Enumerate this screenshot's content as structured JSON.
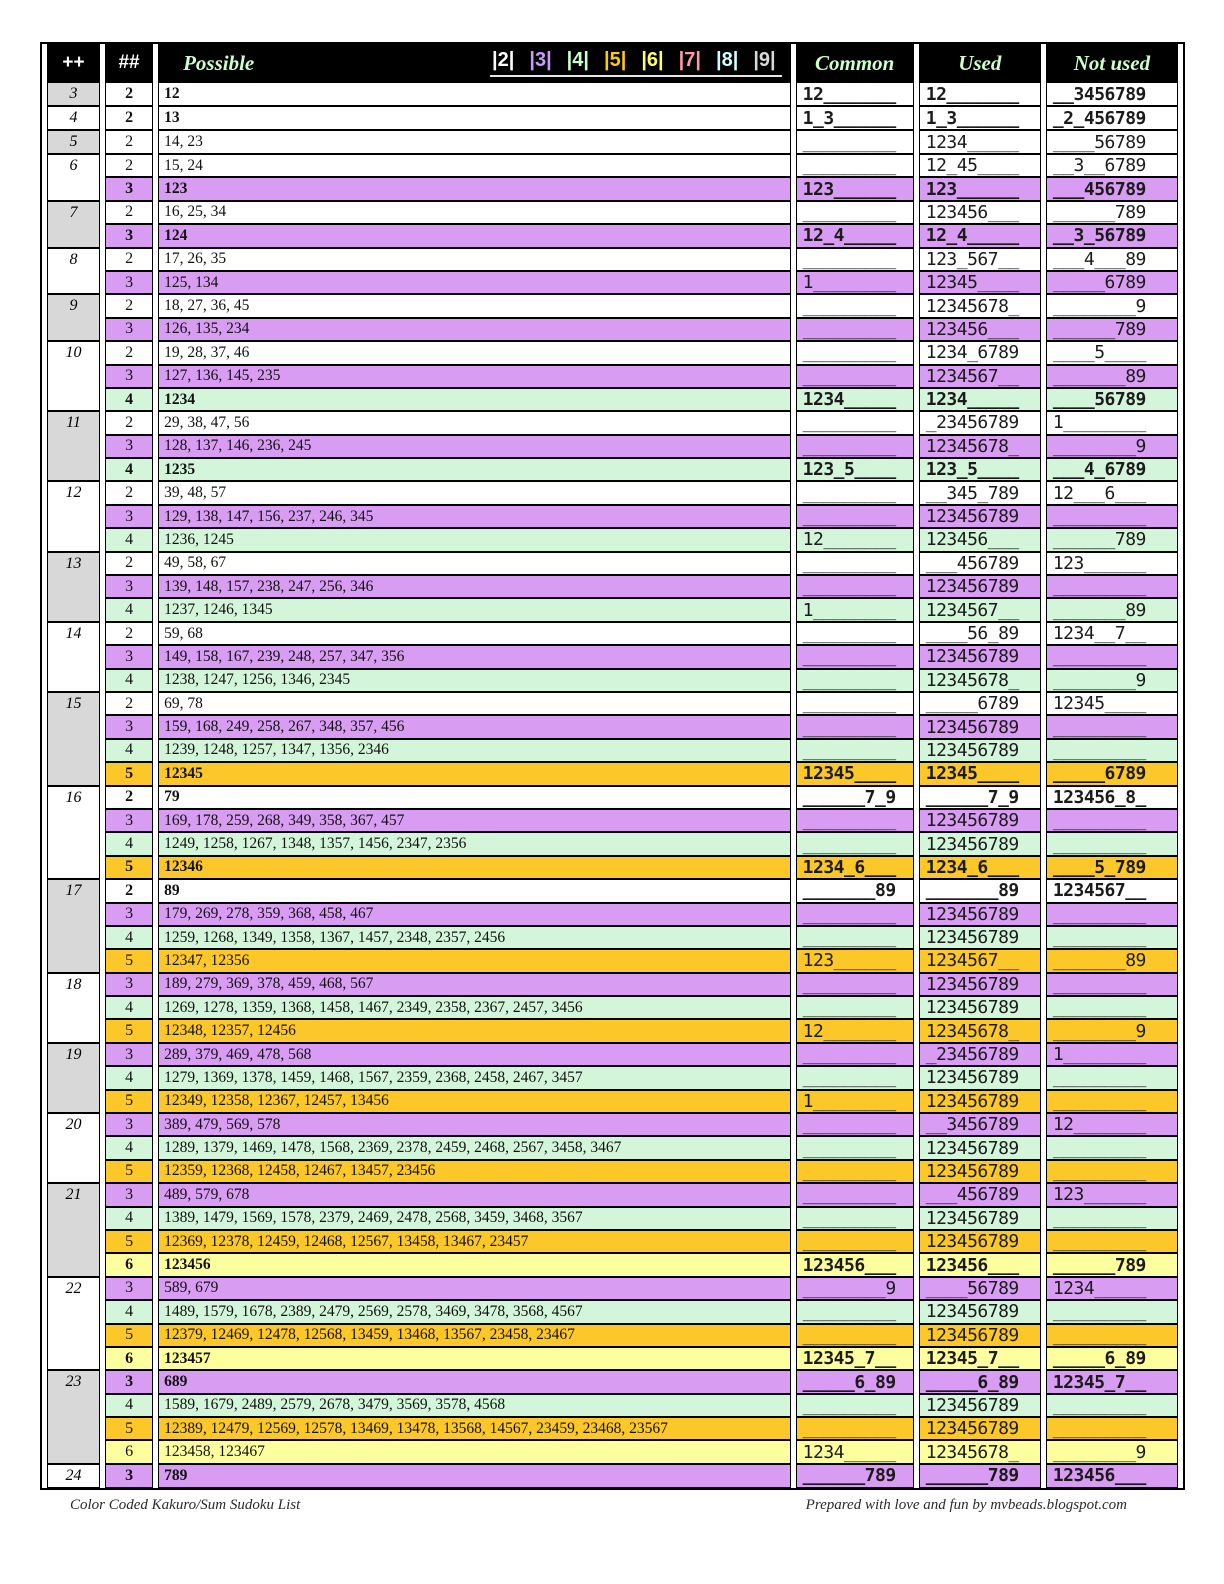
{
  "header": {
    "col_sum": "++",
    "col_count": "##",
    "col_possible": "Possible",
    "col_common": "Common",
    "col_used": "Used",
    "col_not_used": "Not used",
    "legend": [
      {
        "label": "|2|",
        "color": "#ffffff"
      },
      {
        "label": "|3|",
        "color": "#cc99ff"
      },
      {
        "label": "|4|",
        "color": "#ccffcc"
      },
      {
        "label": "|5|",
        "color": "#ffcc00"
      },
      {
        "label": "|6|",
        "color": "#ffff66"
      },
      {
        "label": "|7|",
        "color": "#ff99aa"
      },
      {
        "label": "|8|",
        "color": "#ccffff"
      },
      {
        "label": "|9|",
        "color": "#d9d9d9"
      }
    ]
  },
  "colors": {
    "rows": {
      "2": "#ffffff",
      "3": "#d89cf2",
      "4": "#d3f6da",
      "5": "#fcc729",
      "6": "#fdff9e"
    },
    "sum_shade": "#d8d8d8",
    "header_text": "#ccffcc"
  },
  "groups": [
    {
      "sum": "3",
      "rows": [
        {
          "n": "2",
          "b": 1,
          "p": "12",
          "c": "12_______",
          "u": "12_______",
          "x": "__3456789"
        }
      ]
    },
    {
      "sum": "4",
      "rows": [
        {
          "n": "2",
          "b": 1,
          "p": "13",
          "c": "1_3______",
          "u": "1_3______",
          "x": "_2_456789"
        }
      ]
    },
    {
      "sum": "5",
      "rows": [
        {
          "n": "2",
          "b": 0,
          "p": "14, 23",
          "c": "_________",
          "u": "1234_____",
          "x": "____56789"
        }
      ]
    },
    {
      "sum": "6",
      "rows": [
        {
          "n": "2",
          "b": 0,
          "p": "15, 24",
          "c": "_________",
          "u": "12_45____",
          "x": "__3__6789"
        },
        {
          "n": "3",
          "b": 1,
          "p": "123",
          "c": "123______",
          "u": "123______",
          "x": "___456789"
        }
      ]
    },
    {
      "sum": "7",
      "rows": [
        {
          "n": "2",
          "b": 0,
          "p": "16, 25, 34",
          "c": "_________",
          "u": "123456___",
          "x": "______789"
        },
        {
          "n": "3",
          "b": 1,
          "p": "124",
          "c": "12_4_____",
          "u": "12_4_____",
          "x": "__3_56789"
        }
      ]
    },
    {
      "sum": "8",
      "rows": [
        {
          "n": "2",
          "b": 0,
          "p": "17, 26, 35",
          "c": "_________",
          "u": "123_567__",
          "x": "___4___89"
        },
        {
          "n": "3",
          "b": 0,
          "p": "125, 134",
          "c": "1________",
          "u": "12345____",
          "x": "_____6789"
        }
      ]
    },
    {
      "sum": "9",
      "rows": [
        {
          "n": "2",
          "b": 0,
          "p": "18, 27, 36, 45",
          "c": "_________",
          "u": "12345678_",
          "x": "________9"
        },
        {
          "n": "3",
          "b": 0,
          "p": "126, 135, 234",
          "c": "_________",
          "u": "123456___",
          "x": "______789"
        }
      ]
    },
    {
      "sum": "10",
      "rows": [
        {
          "n": "2",
          "b": 0,
          "p": "19, 28, 37, 46",
          "c": "_________",
          "u": "1234_6789",
          "x": "____5____"
        },
        {
          "n": "3",
          "b": 0,
          "p": "127, 136, 145, 235",
          "c": "_________",
          "u": "1234567__",
          "x": "_______89"
        },
        {
          "n": "4",
          "b": 1,
          "p": "1234",
          "c": "1234_____",
          "u": "1234_____",
          "x": "____56789"
        }
      ]
    },
    {
      "sum": "11",
      "rows": [
        {
          "n": "2",
          "b": 0,
          "p": "29, 38, 47, 56",
          "c": "_________",
          "u": "_23456789",
          "x": "1________"
        },
        {
          "n": "3",
          "b": 0,
          "p": "128, 137, 146, 236, 245",
          "c": "_________",
          "u": "12345678_",
          "x": "________9"
        },
        {
          "n": "4",
          "b": 1,
          "p": "1235",
          "c": "123_5____",
          "u": "123_5____",
          "x": "___4_6789"
        }
      ]
    },
    {
      "sum": "12",
      "rows": [
        {
          "n": "2",
          "b": 0,
          "p": "39, 48, 57",
          "c": "_________",
          "u": "__345_789",
          "x": "12___6___"
        },
        {
          "n": "3",
          "b": 0,
          "p": "129, 138, 147, 156, 237, 246, 345",
          "c": "_________",
          "u": "123456789",
          "x": "_________"
        },
        {
          "n": "4",
          "b": 0,
          "p": "1236, 1245",
          "c": "12_______",
          "u": "123456___",
          "x": "______789"
        }
      ]
    },
    {
      "sum": "13",
      "rows": [
        {
          "n": "2",
          "b": 0,
          "p": "49, 58, 67",
          "c": "_________",
          "u": "___456789",
          "x": "123______"
        },
        {
          "n": "3",
          "b": 0,
          "p": "139, 148, 157, 238, 247, 256, 346",
          "c": "_________",
          "u": "123456789",
          "x": "_________"
        },
        {
          "n": "4",
          "b": 0,
          "p": "1237, 1246, 1345",
          "c": "1________",
          "u": "1234567__",
          "x": "_______89"
        }
      ]
    },
    {
      "sum": "14",
      "rows": [
        {
          "n": "2",
          "b": 0,
          "p": "59, 68",
          "c": "_________",
          "u": "____56_89",
          "x": "1234__7__"
        },
        {
          "n": "3",
          "b": 0,
          "p": "149, 158, 167, 239, 248, 257, 347, 356",
          "c": "_________",
          "u": "123456789",
          "x": "_________"
        },
        {
          "n": "4",
          "b": 0,
          "p": "1238, 1247, 1256, 1346, 2345",
          "c": "_________",
          "u": "12345678_",
          "x": "________9"
        }
      ]
    },
    {
      "sum": "15",
      "rows": [
        {
          "n": "2",
          "b": 0,
          "p": "69, 78",
          "c": "_________",
          "u": "_____6789",
          "x": "12345____"
        },
        {
          "n": "3",
          "b": 0,
          "p": "159, 168, 249, 258, 267, 348, 357, 456",
          "c": "_________",
          "u": "123456789",
          "x": "_________"
        },
        {
          "n": "4",
          "b": 0,
          "p": "1239, 1248, 1257, 1347, 1356, 2346",
          "c": "_________",
          "u": "123456789",
          "x": "_________"
        },
        {
          "n": "5",
          "b": 1,
          "p": "12345",
          "c": "12345____",
          "u": "12345____",
          "x": "_____6789"
        }
      ]
    },
    {
      "sum": "16",
      "rows": [
        {
          "n": "2",
          "b": 1,
          "p": "79",
          "c": "______7_9",
          "u": "______7_9",
          "x": "123456_8_"
        },
        {
          "n": "3",
          "b": 0,
          "p": "169, 178, 259, 268, 349, 358, 367, 457",
          "c": "_________",
          "u": "123456789",
          "x": "_________"
        },
        {
          "n": "4",
          "b": 0,
          "p": "1249, 1258, 1267, 1348, 1357, 1456, 2347, 2356",
          "c": "_________",
          "u": "123456789",
          "x": "_________"
        },
        {
          "n": "5",
          "b": 1,
          "p": "12346",
          "c": "1234_6___",
          "u": "1234_6___",
          "x": "____5_789"
        }
      ]
    },
    {
      "sum": "17",
      "rows": [
        {
          "n": "2",
          "b": 1,
          "p": "89",
          "c": "_______89",
          "u": "_______89",
          "x": "1234567__"
        },
        {
          "n": "3",
          "b": 0,
          "p": "179, 269, 278, 359, 368, 458, 467",
          "c": "_________",
          "u": "123456789",
          "x": "_________"
        },
        {
          "n": "4",
          "b": 0,
          "p": "1259, 1268, 1349, 1358, 1367, 1457, 2348, 2357, 2456",
          "c": "_________",
          "u": "123456789",
          "x": "_________"
        },
        {
          "n": "5",
          "b": 0,
          "p": "12347, 12356",
          "c": "123______",
          "u": "1234567__",
          "x": "_______89"
        }
      ]
    },
    {
      "sum": "18",
      "rows": [
        {
          "n": "3",
          "b": 0,
          "p": "189, 279, 369, 378, 459, 468, 567",
          "c": "_________",
          "u": "123456789",
          "x": "_________"
        },
        {
          "n": "4",
          "b": 0,
          "p": "1269, 1278, 1359, 1368, 1458, 1467, 2349, 2358, 2367, 2457, 3456",
          "c": "_________",
          "u": "123456789",
          "x": "_________"
        },
        {
          "n": "5",
          "b": 0,
          "p": "12348, 12357, 12456",
          "c": "12_______",
          "u": "12345678_",
          "x": "________9"
        }
      ]
    },
    {
      "sum": "19",
      "rows": [
        {
          "n": "3",
          "b": 0,
          "p": "289, 379, 469, 478, 568",
          "c": "_________",
          "u": "_23456789",
          "x": "1________"
        },
        {
          "n": "4",
          "b": 0,
          "p": "1279, 1369, 1378, 1459, 1468, 1567, 2359, 2368, 2458, 2467, 3457",
          "c": "_________",
          "u": "123456789",
          "x": "_________"
        },
        {
          "n": "5",
          "b": 0,
          "p": "12349, 12358, 12367, 12457, 13456",
          "c": "1________",
          "u": "123456789",
          "x": "_________"
        }
      ]
    },
    {
      "sum": "20",
      "rows": [
        {
          "n": "3",
          "b": 0,
          "p": "389, 479, 569, 578",
          "c": "_________",
          "u": "__3456789",
          "x": "12_______"
        },
        {
          "n": "4",
          "b": 0,
          "p": "1289, 1379, 1469, 1478, 1568, 2369, 2378, 2459, 2468, 2567, 3458, 3467",
          "c": "_________",
          "u": "123456789",
          "x": "_________"
        },
        {
          "n": "5",
          "b": 0,
          "p": "12359, 12368, 12458, 12467, 13457, 23456",
          "c": "_________",
          "u": "123456789",
          "x": "_________"
        }
      ]
    },
    {
      "sum": "21",
      "rows": [
        {
          "n": "3",
          "b": 0,
          "p": "489, 579, 678",
          "c": "_________",
          "u": "___456789",
          "x": "123______"
        },
        {
          "n": "4",
          "b": 0,
          "p": "1389, 1479, 1569, 1578, 2379, 2469, 2478, 2568, 3459, 3468, 3567",
          "c": "_________",
          "u": "123456789",
          "x": "_________"
        },
        {
          "n": "5",
          "b": 0,
          "p": "12369, 12378, 12459, 12468, 12567, 13458, 13467, 23457",
          "c": "_________",
          "u": "123456789",
          "x": "_________"
        },
        {
          "n": "6",
          "b": 1,
          "p": "123456",
          "c": "123456___",
          "u": "123456___",
          "x": "______789"
        }
      ]
    },
    {
      "sum": "22",
      "rows": [
        {
          "n": "3",
          "b": 0,
          "p": "589, 679",
          "c": "________9",
          "u": "____56789",
          "x": "1234_____"
        },
        {
          "n": "4",
          "b": 0,
          "p": "1489, 1579, 1678, 2389, 2479, 2569, 2578, 3469, 3478, 3568, 4567",
          "c": "_________",
          "u": "123456789",
          "x": "_________"
        },
        {
          "n": "5",
          "b": 0,
          "p": "12379, 12469, 12478, 12568, 13459, 13468, 13567, 23458, 23467",
          "c": "_________",
          "u": "123456789",
          "x": "_________"
        },
        {
          "n": "6",
          "b": 1,
          "p": "123457",
          "c": "12345_7__",
          "u": "12345_7__",
          "x": "_____6_89"
        }
      ]
    },
    {
      "sum": "23",
      "rows": [
        {
          "n": "3",
          "b": 1,
          "p": "689",
          "c": "_____6_89",
          "u": "_____6_89",
          "x": "12345_7__"
        },
        {
          "n": "4",
          "b": 0,
          "p": "1589, 1679, 2489, 2579, 2678, 3479, 3569, 3578, 4568",
          "c": "_________",
          "u": "123456789",
          "x": "_________"
        },
        {
          "n": "5",
          "b": 0,
          "p": "12389, 12479, 12569, 12578, 13469, 13478, 13568, 14567, 23459, 23468, 23567",
          "c": "_________",
          "u": "123456789",
          "x": "_________"
        },
        {
          "n": "6",
          "b": 0,
          "p": "123458, 123467",
          "c": "1234_____",
          "u": "12345678_",
          "x": "________9"
        }
      ]
    },
    {
      "sum": "24",
      "rows": [
        {
          "n": "3",
          "b": 1,
          "p": "789",
          "c": "______789",
          "u": "______789",
          "x": "123456___"
        }
      ]
    }
  ],
  "footer": {
    "left": "Color Coded Kakuro/Sum Sudoku List",
    "right": "Prepared with love and fun by mvbeads.blogspot.com"
  }
}
